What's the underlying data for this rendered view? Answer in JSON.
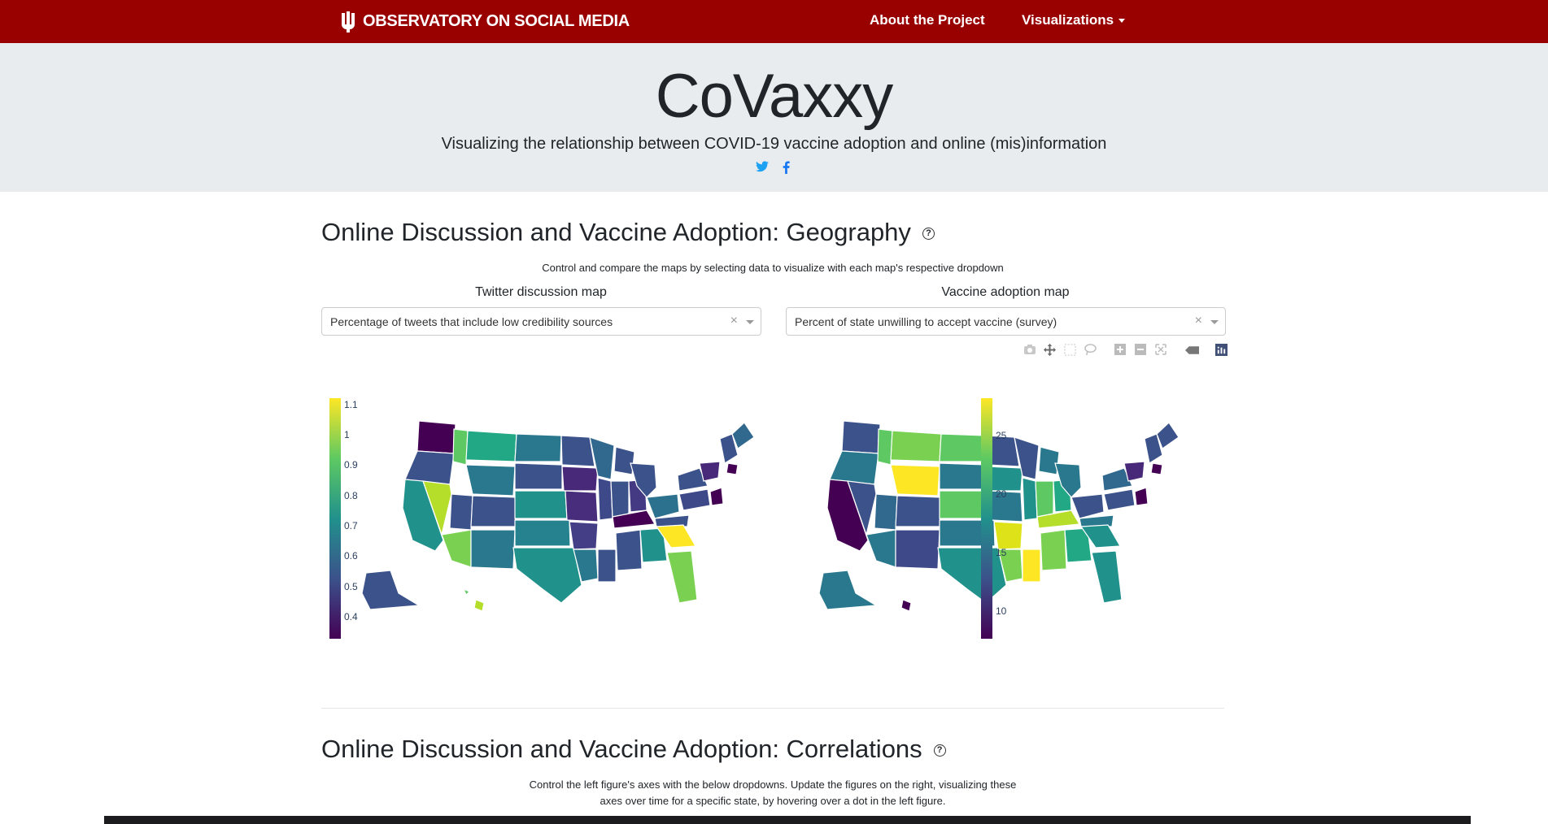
{
  "navbar": {
    "brand": "OBSERVATORY ON SOCIAL MEDIA",
    "about_label": "About the Project",
    "visualizations_label": "Visualizations"
  },
  "header": {
    "title": "CoVaxxy",
    "subtitle": "Visualizing the relationship between COVID-19 vaccine adoption and online (mis)information",
    "social_icons": [
      "twitter-icon",
      "facebook-icon"
    ]
  },
  "geography": {
    "heading": "Online Discussion and Vaccine Adoption: Geography",
    "note": "Control and compare the maps by selecting data to visualize with each map's respective dropdown",
    "left": {
      "label": "Twitter discussion map",
      "selected": "Percentage of tweets that include low credibility sources",
      "colorbar_ticks": [
        "1.1",
        "1",
        "0.9",
        "0.8",
        "0.7",
        "0.6",
        "0.5",
        "0.4"
      ]
    },
    "right": {
      "label": "Vaccine adoption map",
      "selected": "Percent of state unwilling to accept vaccine (survey)",
      "colorbar_ticks": [
        "25",
        "20",
        "15",
        "10"
      ]
    },
    "modebar_icons": [
      "camera-icon",
      "pan-icon",
      "box-select-icon",
      "lasso-icon",
      "zoom-in-icon",
      "zoom-out-icon",
      "autoscale-icon",
      "hover-icon",
      "plotly-logo-icon"
    ]
  },
  "correlations": {
    "heading": "Online Discussion and Vaccine Adoption: Correlations",
    "note_line1": "Control the left figure's axes with the below dropdowns. Update the figures on the right, visualizing these",
    "note_line2": "axes over time for a specific state, by hovering over a dot in the left figure."
  },
  "colors": {
    "navbar": "#990000",
    "jumbotron": "#e9ecef",
    "viridis": [
      "#440154",
      "#3b528b",
      "#21918c",
      "#5ec962",
      "#fde725"
    ]
  }
}
